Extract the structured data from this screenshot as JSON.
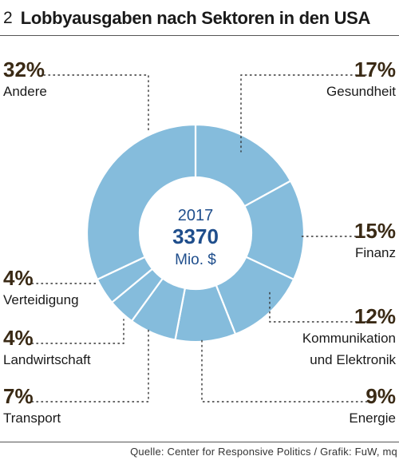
{
  "header": {
    "chart_number": "2",
    "title": "Lobbyausgaben nach Sektoren in den USA"
  },
  "center": {
    "year": "2017",
    "total": "3370",
    "unit": "Mio. $"
  },
  "source": "Quelle: Center for Responsive Politics / Grafik: FuW, mq",
  "colors": {
    "slice_fill": "#85bcdc",
    "slice_stroke": "#ffffff",
    "center_text": "#1f4e8c",
    "percent_text": "#3a2a15"
  },
  "chart_data": {
    "type": "pie",
    "title": "Lobbyausgaben nach Sektoren in den USA",
    "subtitle": "2017",
    "total": 3370,
    "unit": "Mio. $",
    "donut": true,
    "slices": [
      {
        "name": "Gesundheit",
        "lines": [
          "Gesundheit"
        ],
        "value": 17,
        "label": "17%"
      },
      {
        "name": "Finanz",
        "lines": [
          "Finanz"
        ],
        "value": 15,
        "label": "15%"
      },
      {
        "name": "Kommunikation und Elektronik",
        "lines": [
          "Kommunikation",
          "und Elektronik"
        ],
        "value": 12,
        "label": "12%"
      },
      {
        "name": "Energie",
        "lines": [
          "Energie"
        ],
        "value": 9,
        "label": "9%"
      },
      {
        "name": "Transport",
        "lines": [
          "Transport"
        ],
        "value": 7,
        "label": "7%"
      },
      {
        "name": "Landwirtschaft",
        "lines": [
          "Landwirtschaft"
        ],
        "value": 4,
        "label": "4%"
      },
      {
        "name": "Verteidigung",
        "lines": [
          "Verteidigung"
        ],
        "value": 4,
        "label": "4%"
      },
      {
        "name": "Andere",
        "lines": [
          "Andere"
        ],
        "value": 32,
        "label": "32%"
      }
    ]
  }
}
